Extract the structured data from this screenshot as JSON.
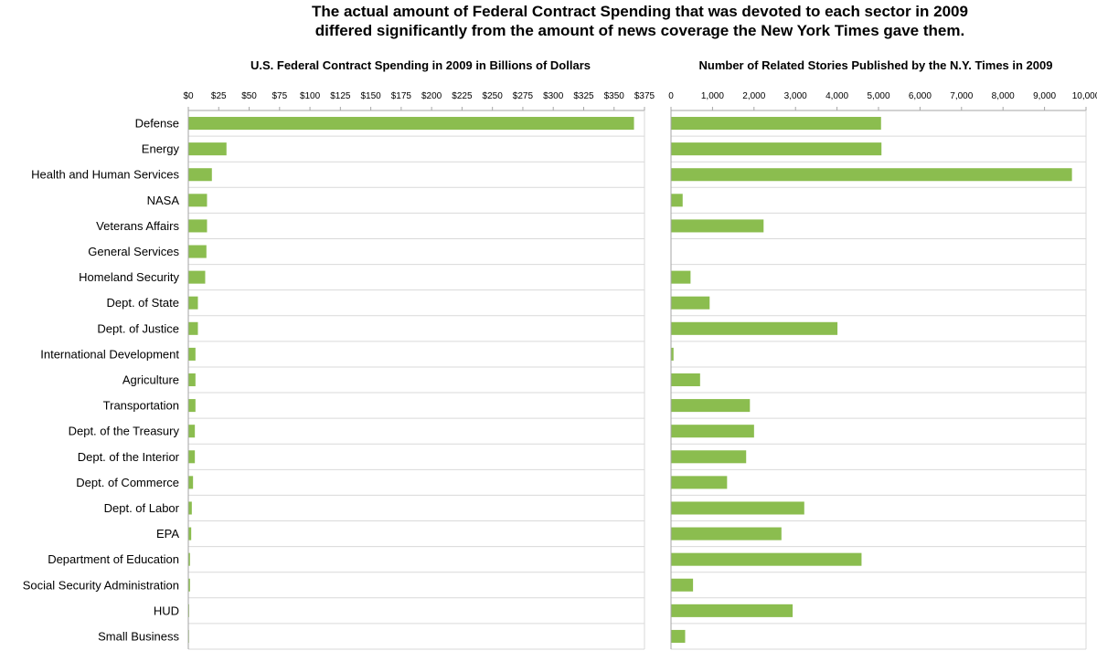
{
  "title_line1": "The actual amount of Federal Contract Spending that was devoted to each sector in 2009",
  "title_line2": "differed significantly from the amount of news coverage the New York Times gave them.",
  "colors": {
    "bar": "#8bbd4f",
    "grid": "#d9d9d9",
    "axis": "#a6a6a6"
  },
  "chart_data": [
    {
      "type": "bar",
      "orientation": "horizontal",
      "title": "U.S. Federal Contract Spending in 2009 in Billions of Dollars",
      "xlim": [
        0,
        375
      ],
      "ticks": [
        0,
        25,
        50,
        75,
        100,
        125,
        150,
        175,
        200,
        225,
        250,
        275,
        300,
        325,
        350,
        375
      ],
      "tick_labels": [
        "$0",
        "$25",
        "$50",
        "$75",
        "$100",
        "$125",
        "$150",
        "$175",
        "$200",
        "$225",
        "$250",
        "$275",
        "$300",
        "$325",
        "$350",
        "$375"
      ],
      "categories": [
        "Defense",
        "Energy",
        "Health and Human Services",
        "NASA",
        "Veterans Affairs",
        "General Services",
        "Homeland Security",
        "Dept. of State",
        "Dept. of Justice",
        "International Development",
        "Agriculture",
        "Transportation",
        "Dept. of the Treasury",
        "Dept. of the Interior",
        "Dept. of Commerce",
        "Dept. of Labor",
        "EPA",
        "Department of Education",
        "Social Security Administration",
        "HUD",
        "Small Business"
      ],
      "values": [
        366,
        31,
        19,
        15,
        15,
        14.5,
        13.5,
        7.5,
        7.5,
        5.5,
        5.5,
        5.5,
        5,
        5,
        3.5,
        2.5,
        2,
        1,
        1,
        0.3,
        0.2
      ]
    },
    {
      "type": "bar",
      "orientation": "horizontal",
      "title": "Number of Related Stories Published by the N.Y. Times in 2009",
      "xlim": [
        0,
        10000
      ],
      "ticks": [
        0,
        1000,
        2000,
        3000,
        4000,
        5000,
        6000,
        7000,
        8000,
        9000,
        10000
      ],
      "tick_labels": [
        "0",
        "1,000",
        "2,000",
        "3,000",
        "4,000",
        "5,000",
        "6,000",
        "7,000",
        "8,000",
        "9,000",
        "10,000"
      ],
      "categories": [
        "Defense",
        "Energy",
        "Health and Human Services",
        "NASA",
        "Veterans Affairs",
        "General Services",
        "Homeland Security",
        "Dept. of State",
        "Dept. of Justice",
        "International Development",
        "Agriculture",
        "Transportation",
        "Dept. of the Treasury",
        "Dept. of the Interior",
        "Dept. of Commerce",
        "Dept. of Labor",
        "EPA",
        "Department of Education",
        "Social Security Administration",
        "HUD",
        "Small Business"
      ],
      "values": [
        5050,
        5060,
        9650,
        270,
        2220,
        0,
        460,
        920,
        4000,
        50,
        690,
        1890,
        1990,
        1800,
        1340,
        3200,
        2650,
        4580,
        520,
        2920,
        330
      ]
    }
  ]
}
